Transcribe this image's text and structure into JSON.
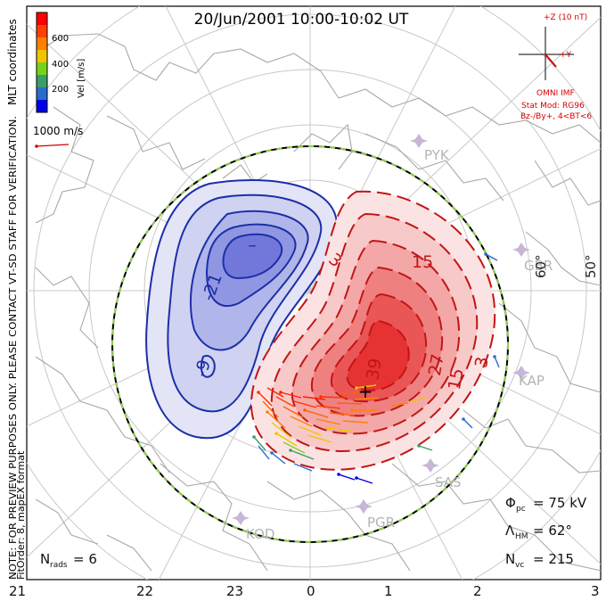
{
  "title": "20/Jun/2001 10:00-10:02 UT",
  "coordinates_label": "MLT coordinates",
  "note_line1": "NOTE: FOR PREVIEW PURPOSES ONLY. PLEASE CONTACT VT-SD STAFF FOR VERIFICATION.",
  "note_line2": "FitOrder: 8, mapEX format",
  "colorbar": {
    "label": "Vel [m/s]",
    "ticks": [
      "600",
      "400",
      "200"
    ],
    "colors": [
      "#0000e6",
      "#2a6ccc",
      "#3a9e6a",
      "#77d21e",
      "#f0c400",
      "#ff8000",
      "#ff4000",
      "#ff0000"
    ]
  },
  "reference_vector": {
    "label": "1000 m/s",
    "color": "#d40000"
  },
  "imf": {
    "bz_label": "+Z (10 nT)",
    "by_label": "+Y",
    "source": "OMNI IMF",
    "stat_model": "Stat Mod: RG96",
    "condition": "Bz-/By+, 4<BT<6"
  },
  "mlt_ticks": [
    "21",
    "22",
    "23",
    "0",
    "1",
    "2",
    "3"
  ],
  "latitude_labels": [
    "60°",
    "50°"
  ],
  "stations": [
    "PYK",
    "GBR",
    "KAP",
    "SAS",
    "PGR",
    "KOD"
  ],
  "contour_labels": {
    "negative": [
      "-21",
      "-9"
    ],
    "positive": [
      "3",
      "15",
      "39",
      "27",
      "15",
      "3"
    ]
  },
  "stats": {
    "phi_symbol": "Φ",
    "phi_sub": "pc",
    "phi_value": "= 75 kV",
    "lambda_symbol": "Λ",
    "lambda_sub": "HM",
    "lambda_value": "= 62°",
    "nvc_symbol": "N",
    "nvc_sub": "vc",
    "nvc_value": "= 215",
    "nrads_symbol": "N",
    "nrads_sub": "rads",
    "nrads_value": "= 6"
  },
  "convection": {
    "potential_min_marker": "–",
    "potential_max_marker": "+",
    "negative_fill": "#5b66d6",
    "positive_fill": "#ea2b2b"
  }
}
